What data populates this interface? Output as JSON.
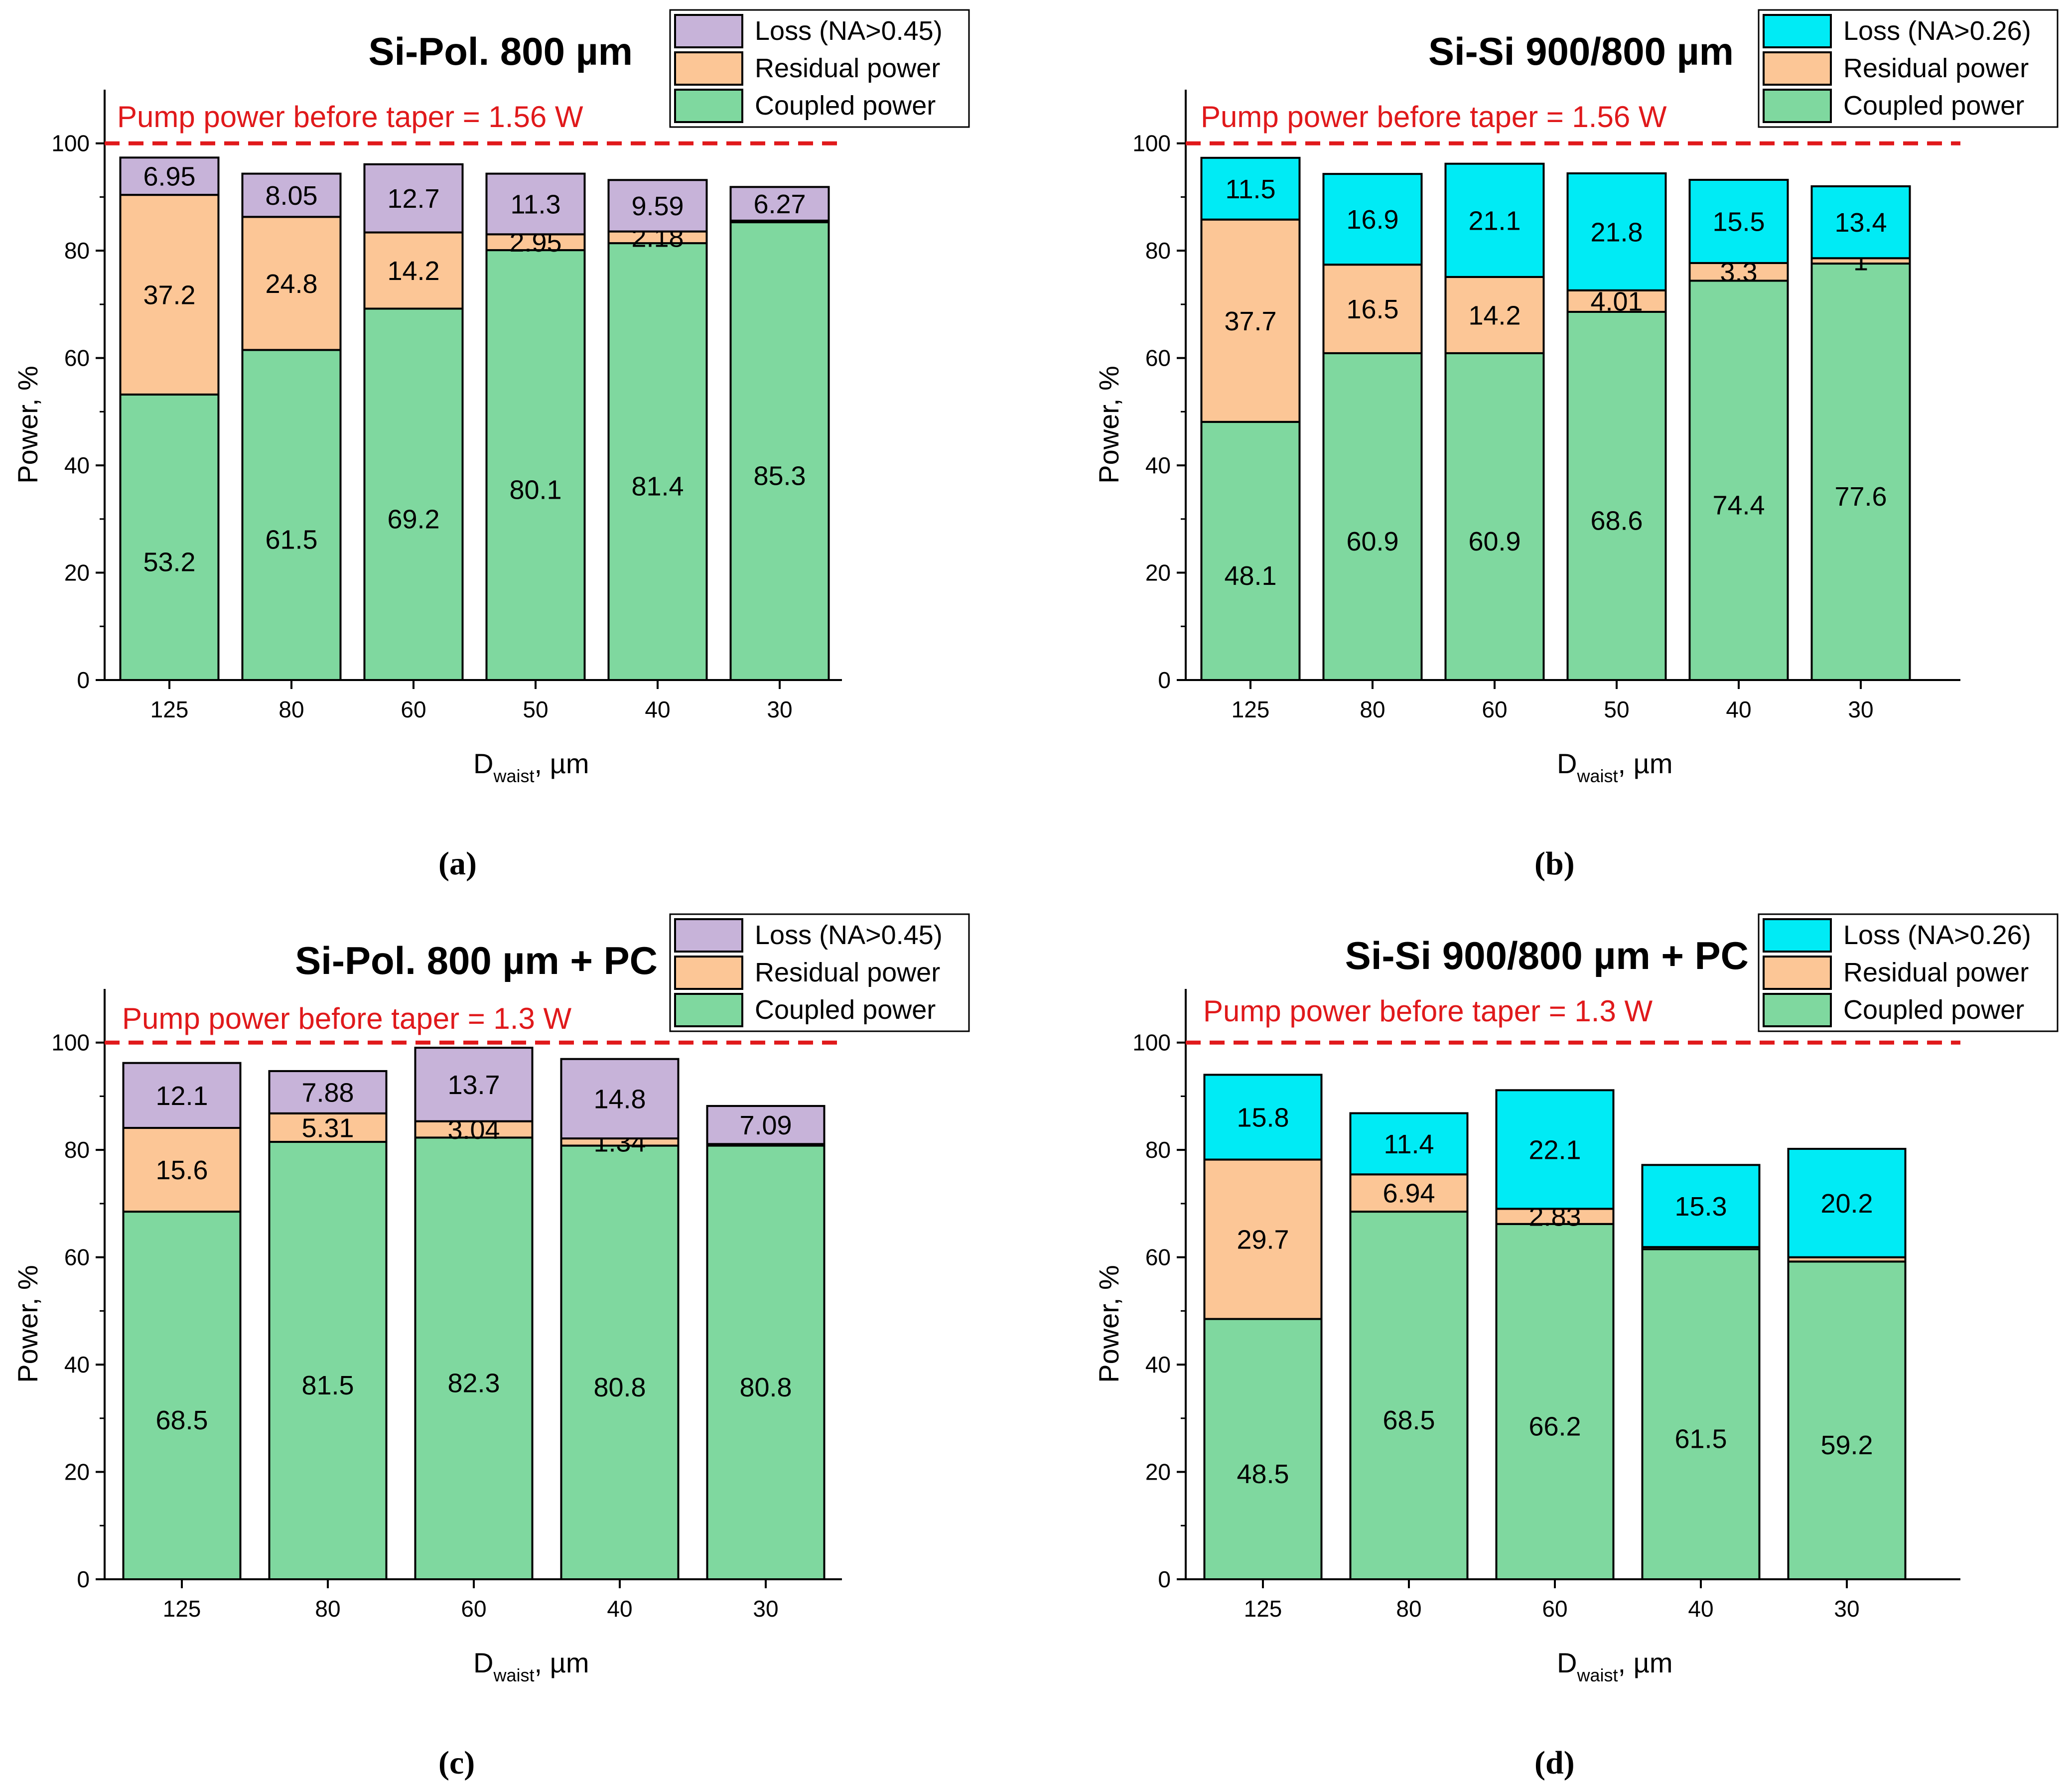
{
  "legend_colors": {
    "coupled": "#7fd89f",
    "residual": "#fcc696",
    "loss_purple": "#c7b3d9",
    "loss_cyan": "#00ebf5",
    "pump_line": "#e0191b"
  },
  "chart_data": [
    {
      "panel": "a",
      "caption": "(a)",
      "type": "bar",
      "stacked": true,
      "title": "Si-Pol.  800 µm",
      "pump_label": "Pump power before taper = 1.56 W",
      "pump_value": 100,
      "xlabel_main": "D",
      "xlabel_sub": "waist",
      "xlabel_unit": ", µm",
      "ylabel": "Power, %",
      "ylim": [
        0,
        110
      ],
      "yticks": [
        "0",
        "20",
        "40",
        "60",
        "80",
        "100"
      ],
      "categories": [
        "125",
        "80",
        "60",
        "50",
        "40",
        "30"
      ],
      "loss_color_key": "loss_purple",
      "series": [
        {
          "key": "coupled",
          "name": "Coupled power",
          "values": [
            53.2,
            61.5,
            69.2,
            80.1,
            81.4,
            85.3
          ],
          "labels": [
            "53.2",
            "61.5",
            "69.2",
            "80.1",
            "81.4",
            "85.3"
          ]
        },
        {
          "key": "residual",
          "name": "Residual power",
          "values": [
            37.2,
            24.8,
            14.2,
            2.95,
            2.18,
            0.3
          ],
          "labels": [
            "37.2",
            "24.8",
            "14.2",
            "2.95",
            "2.18",
            ""
          ]
        },
        {
          "key": "loss",
          "name": "Loss (NA>0.45)",
          "values": [
            6.95,
            8.05,
            12.7,
            11.3,
            9.59,
            6.27
          ],
          "labels": [
            "6.95",
            "8.05",
            "12.7",
            "11.3",
            "9.59",
            "6.27"
          ]
        }
      ]
    },
    {
      "panel": "b",
      "caption": "(b)",
      "type": "bar",
      "stacked": true,
      "title": "Si-Si  900/800 µm",
      "pump_label": "Pump power before taper = 1.56 W",
      "pump_value": 100,
      "xlabel_main": "D",
      "xlabel_sub": "waist",
      "xlabel_unit": ", µm",
      "ylabel": "Power, %",
      "ylim": [
        0,
        110
      ],
      "yticks": [
        "0",
        "20",
        "40",
        "60",
        "80",
        "100"
      ],
      "categories": [
        "125",
        "80",
        "60",
        "50",
        "40",
        "30"
      ],
      "loss_color_key": "loss_cyan",
      "series": [
        {
          "key": "coupled",
          "name": "Coupled power",
          "values": [
            48.1,
            60.9,
            60.9,
            68.6,
            74.4,
            77.6
          ],
          "labels": [
            "48.1",
            "60.9",
            "60.9",
            "68.6",
            "74.4",
            "77.6"
          ]
        },
        {
          "key": "residual",
          "name": "Residual power",
          "values": [
            37.7,
            16.5,
            14.2,
            4.01,
            3.3,
            1
          ],
          "labels": [
            "37.7",
            "16.5",
            "14.2",
            "4.01",
            "3.3",
            "1"
          ]
        },
        {
          "key": "loss",
          "name": "Loss (NA>0.26)",
          "values": [
            11.5,
            16.9,
            21.1,
            21.8,
            15.5,
            13.4
          ],
          "labels": [
            "11.5",
            "16.9",
            "21.1",
            "21.8",
            "15.5",
            "13.4"
          ]
        }
      ]
    },
    {
      "panel": "c",
      "caption": "(c)",
      "type": "bar",
      "stacked": true,
      "title": "Si-Pol.  800 µm + PC",
      "pump_label": "Pump power before taper = 1.3 W",
      "pump_value": 100,
      "xlabel_main": "D",
      "xlabel_sub": "waist",
      "xlabel_unit": ", µm",
      "ylabel": "Power, %",
      "ylim": [
        0,
        110
      ],
      "yticks": [
        "0",
        "20",
        "40",
        "60",
        "80",
        "100"
      ],
      "categories": [
        "125",
        "80",
        "60",
        "40",
        "30"
      ],
      "loss_color_key": "loss_purple",
      "series": [
        {
          "key": "coupled",
          "name": "Coupled power",
          "values": [
            68.5,
            81.5,
            82.3,
            80.8,
            80.8
          ],
          "labels": [
            "68.5",
            "81.5",
            "82.3",
            "80.8",
            "80.8"
          ]
        },
        {
          "key": "residual",
          "name": "Residual power",
          "values": [
            15.6,
            5.31,
            3.04,
            1.34,
            0.3
          ],
          "labels": [
            "15.6",
            "5.31",
            "3.04",
            "1.34",
            ""
          ]
        },
        {
          "key": "loss",
          "name": "Loss (NA>0.45)",
          "values": [
            12.1,
            7.88,
            13.7,
            14.8,
            7.09
          ],
          "labels": [
            "12.1",
            "7.88",
            "13.7",
            "14.8",
            "7.09"
          ]
        }
      ]
    },
    {
      "panel": "d",
      "caption": "(d)",
      "type": "bar",
      "stacked": true,
      "title": "Si-Si  900/800 µm + PC",
      "pump_label": "Pump power before taper = 1.3 W",
      "pump_value": 100,
      "xlabel_main": "D",
      "xlabel_sub": "waist",
      "xlabel_unit": ", µm",
      "ylabel": "Power, %",
      "ylim": [
        0,
        110
      ],
      "yticks": [
        "0",
        "20",
        "40",
        "60",
        "80",
        "100"
      ],
      "categories": [
        "125",
        "80",
        "60",
        "40",
        "30"
      ],
      "loss_color_key": "loss_cyan",
      "series": [
        {
          "key": "coupled",
          "name": "Coupled power",
          "values": [
            48.5,
            68.5,
            66.2,
            61.5,
            59.2
          ],
          "labels": [
            "48.5",
            "68.5",
            "66.2",
            "61.5",
            "59.2"
          ]
        },
        {
          "key": "residual",
          "name": "Residual power",
          "values": [
            29.7,
            6.94,
            2.83,
            0.4,
            0.8
          ],
          "labels": [
            "29.7",
            "6.94",
            "2.83",
            "",
            ""
          ]
        },
        {
          "key": "loss",
          "name": "Loss (NA>0.26)",
          "values": [
            15.8,
            11.4,
            22.1,
            15.3,
            20.2
          ],
          "labels": [
            "15.8",
            "11.4",
            "22.1",
            "15.3",
            "20.2"
          ]
        }
      ]
    }
  ]
}
